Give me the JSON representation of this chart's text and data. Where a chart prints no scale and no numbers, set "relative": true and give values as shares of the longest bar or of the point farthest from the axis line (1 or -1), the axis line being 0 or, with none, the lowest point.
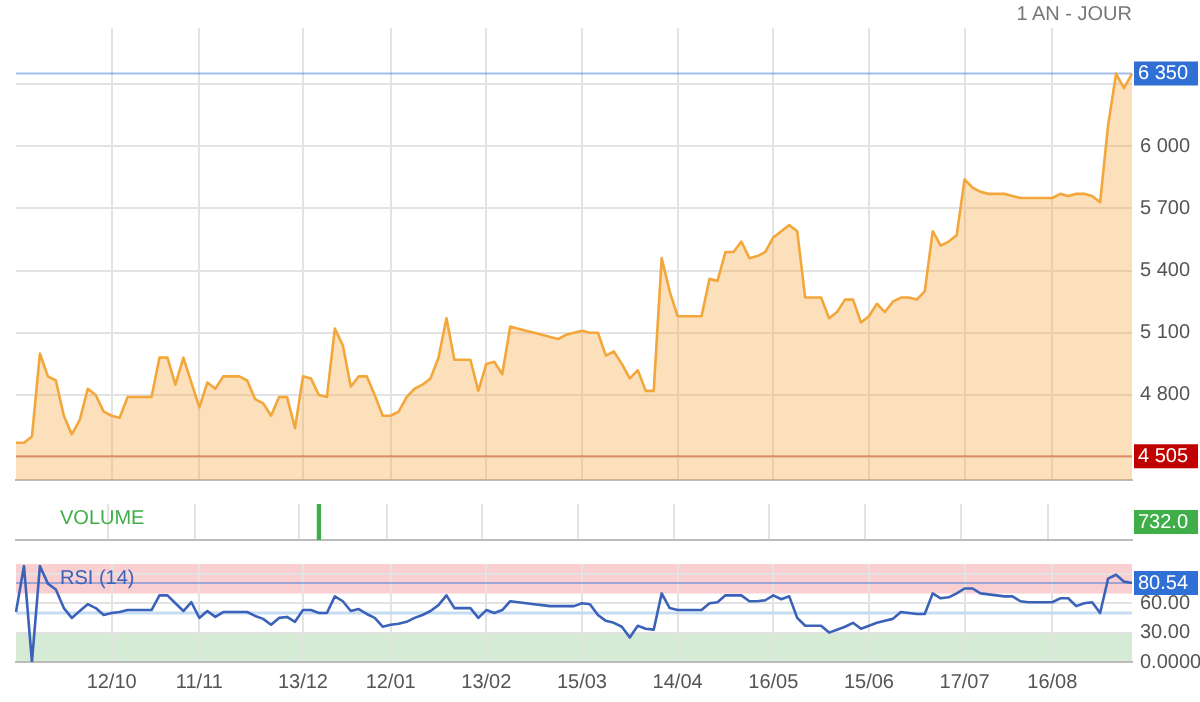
{
  "chart_data": [
    {
      "type": "area",
      "subtitle": "1 AN - JOUR",
      "marker": "none",
      "grid": true,
      "tick_labels": "y",
      "categories": [
        null,
        null,
        null,
        null,
        null,
        null,
        null,
        null,
        null,
        null,
        null,
        null,
        null,
        null,
        null,
        null,
        null,
        null,
        null,
        null,
        null,
        null,
        null,
        null,
        null,
        null,
        null,
        null,
        null,
        null,
        null,
        null,
        null,
        null,
        null,
        null,
        null,
        null,
        null,
        null,
        null,
        null,
        null,
        null,
        null,
        null,
        null,
        null,
        null,
        null,
        null,
        null,
        null,
        null,
        null,
        null,
        null,
        null,
        null,
        null,
        null,
        null,
        null,
        null,
        null,
        null,
        null,
        null,
        null,
        null,
        null,
        null,
        null,
        null,
        null,
        null,
        null,
        null,
        null,
        null,
        null,
        null,
        null,
        null,
        null,
        null,
        null,
        null,
        null,
        null,
        null,
        null,
        null,
        null,
        null,
        null,
        null,
        null,
        null,
        null,
        null,
        null,
        null,
        null,
        null,
        null,
        null,
        null,
        null,
        null,
        null,
        null,
        null,
        null,
        null,
        null,
        null,
        null,
        null,
        null,
        null,
        null,
        null,
        null,
        null,
        null,
        null,
        null,
        null,
        null,
        null,
        null,
        null,
        null,
        null,
        null,
        null,
        null,
        null,
        null,
        null
      ],
      "series": [
        {
          "color": "#f3a73b",
          "values": [
            4570,
            4570,
            4600,
            5000,
            4890,
            4870,
            4700,
            4610,
            4680,
            4830,
            4800,
            4720,
            4700,
            4690,
            4790,
            4790,
            4790,
            4790,
            4980,
            4980,
            4850,
            4980,
            4860,
            4740,
            4860,
            4830,
            4890,
            4890,
            4890,
            4870,
            4780,
            4760,
            4700,
            4790,
            4790,
            4640,
            4890,
            4880,
            4800,
            4790,
            5120,
            5040,
            4840,
            4890,
            4890,
            4800,
            4700,
            4700,
            4720,
            4790,
            4830,
            4850,
            4880,
            4980,
            5170,
            4970,
            4970,
            4970,
            4820,
            4950,
            4960,
            4900,
            5130,
            5120,
            5110,
            5100,
            5090,
            5080,
            5070,
            5090,
            5100,
            5110,
            5100,
            5100,
            4990,
            5010,
            4950,
            4880,
            4920,
            4820,
            4820,
            5460,
            5300,
            5180,
            5180,
            5180,
            5180,
            5360,
            5350,
            5490,
            5490,
            5540,
            5460,
            5470,
            5490,
            5560,
            5590,
            5620,
            5590,
            5270,
            5270,
            5270,
            5170,
            5200,
            5260,
            5260,
            5150,
            5180,
            5240,
            5200,
            5250,
            5270,
            5270,
            5260,
            5300,
            5590,
            5520,
            5540,
            5570,
            5840,
            5800,
            5780,
            5770,
            5770,
            5770,
            5760,
            5750,
            5750,
            5750,
            5750,
            5750,
            5770,
            5760,
            5770,
            5770,
            5760,
            5730,
            6100,
            6350,
            6280,
            6350
          ]
        }
      ],
      "ylim": [
        4390,
        6570
      ],
      "yticks": [
        {
          "value": 4500,
          "label": null
        },
        {
          "value": 4800,
          "label": "4 800"
        },
        {
          "value": 5100,
          "label": "5 100"
        },
        {
          "value": 5400,
          "label": "5 400"
        },
        {
          "value": 5700,
          "label": "5 700"
        },
        {
          "value": 6000,
          "label": "6 000"
        },
        {
          "value": 6300,
          "label": null
        }
      ],
      "ref_lines": [
        {
          "axis": "y",
          "value": 6350,
          "label": "6 350",
          "color": "#2f6fd6"
        },
        {
          "axis": "y",
          "value": 4505,
          "label": "4 505",
          "color": "#c00000"
        }
      ]
    },
    {
      "type": "bar",
      "title": "VOLUME",
      "relative": true,
      "grid": "x",
      "tick_labels": false,
      "categories": [
        null,
        null,
        null,
        null,
        null,
        null,
        null,
        null,
        null,
        null,
        null,
        null,
        null,
        null,
        null,
        null,
        null,
        null,
        null,
        null,
        null,
        null,
        null,
        null,
        null,
        null,
        null,
        null,
        null,
        null,
        null,
        null,
        null,
        null,
        null,
        null,
        null,
        null,
        null,
        null,
        null,
        null,
        null,
        null,
        null,
        null,
        null,
        null,
        null,
        null,
        null,
        null,
        null,
        null,
        null,
        null,
        null,
        null,
        null,
        null,
        null,
        null,
        null,
        null,
        null,
        null,
        null,
        null,
        null,
        null,
        null,
        null,
        null,
        null,
        null,
        null,
        null,
        null,
        null,
        null,
        null,
        null,
        null,
        null,
        null,
        null,
        null,
        null,
        null,
        null,
        null,
        null,
        null,
        null,
        null,
        null,
        null,
        null,
        null,
        null,
        null,
        null,
        null,
        null,
        null,
        null,
        null,
        null,
        null,
        null,
        null,
        null,
        null,
        null,
        null,
        null,
        null,
        null,
        null,
        null,
        null,
        null,
        null,
        null,
        null,
        null,
        null,
        null,
        null,
        null,
        null,
        null,
        null,
        null,
        null,
        null,
        null,
        null,
        null,
        null,
        null
      ],
      "series": [
        {
          "color": "#3fae49",
          "values": [
            null,
            null,
            null,
            null,
            null,
            null,
            null,
            null,
            null,
            null,
            null,
            null,
            null,
            null,
            null,
            null,
            null,
            null,
            null,
            null,
            null,
            null,
            null,
            null,
            null,
            null,
            null,
            null,
            null,
            null,
            null,
            null,
            null,
            null,
            null,
            null,
            null,
            null,
            1,
            null,
            null,
            null,
            null,
            null,
            null,
            null,
            null,
            null,
            null,
            null,
            null,
            null,
            null,
            null,
            null,
            null,
            null,
            null,
            null,
            null,
            null,
            null,
            null,
            null,
            null,
            null,
            null,
            null,
            null,
            null,
            null,
            null,
            null,
            null,
            null,
            null,
            null,
            null,
            null,
            null,
            null,
            null,
            null,
            null,
            null,
            null,
            null,
            null,
            null,
            null,
            null,
            null,
            null,
            null,
            null,
            null,
            null,
            null,
            null,
            null,
            null,
            null,
            null,
            null,
            null,
            null,
            null,
            null,
            null,
            null,
            null,
            null,
            null,
            null,
            null,
            null,
            null,
            null,
            null,
            null,
            null,
            null,
            null,
            null,
            null,
            null,
            null,
            null,
            null,
            null,
            null,
            null,
            null,
            null,
            null,
            null,
            null,
            null,
            null,
            null,
            null
          ]
        }
      ],
      "annotations": [
        "732.0"
      ]
    },
    {
      "type": "line",
      "title": "RSI (14)",
      "marker": "none",
      "grid": true,
      "categories": [
        null,
        null,
        null,
        null,
        null,
        null,
        null,
        null,
        null,
        null,
        null,
        null,
        "12/10",
        null,
        null,
        null,
        null,
        null,
        null,
        null,
        null,
        null,
        null,
        "11/11",
        null,
        null,
        null,
        null,
        null,
        null,
        null,
        null,
        null,
        null,
        null,
        null,
        "13/12",
        null,
        null,
        null,
        null,
        null,
        null,
        null,
        null,
        null,
        null,
        "12/01",
        null,
        null,
        null,
        null,
        null,
        null,
        null,
        null,
        null,
        null,
        null,
        "13/02",
        null,
        null,
        null,
        null,
        null,
        null,
        null,
        null,
        null,
        null,
        null,
        "15/03",
        null,
        null,
        null,
        null,
        null,
        null,
        null,
        null,
        null,
        null,
        null,
        "14/04",
        null,
        null,
        null,
        null,
        null,
        null,
        null,
        null,
        null,
        null,
        null,
        "16/05",
        null,
        null,
        null,
        null,
        null,
        null,
        null,
        null,
        null,
        null,
        null,
        "15/06",
        null,
        null,
        null,
        null,
        null,
        null,
        null,
        null,
        null,
        null,
        null,
        "17/07",
        null,
        null,
        null,
        null,
        null,
        null,
        null,
        null,
        null,
        null,
        "16/08",
        null,
        null,
        null,
        null,
        null,
        null,
        null,
        null,
        null,
        null
      ],
      "series": [
        {
          "color": "#3a62b8",
          "values": [
            51,
            98,
            0,
            98,
            80,
            74,
            55,
            45,
            52,
            59,
            55,
            48,
            50,
            51,
            53,
            53,
            53,
            53,
            68,
            68,
            60,
            52,
            61,
            45,
            52,
            46,
            51,
            51,
            51,
            51,
            47,
            44,
            38,
            45,
            46,
            41,
            53,
            53,
            50,
            50,
            67,
            62,
            52,
            54,
            49,
            45,
            36,
            38,
            39,
            41,
            45,
            48,
            52,
            58,
            68,
            55,
            55,
            55,
            45,
            53,
            50,
            53,
            62,
            61,
            60,
            59,
            58,
            57,
            57,
            57,
            57,
            60,
            59,
            48,
            42,
            40,
            36,
            25,
            37,
            34,
            33,
            70,
            55,
            53,
            53,
            53,
            53,
            60,
            61,
            68,
            68,
            68,
            62,
            62,
            63,
            68,
            64,
            67,
            45,
            37,
            37,
            37,
            30,
            33,
            36,
            40,
            34,
            37,
            40,
            42,
            44,
            51,
            50,
            49,
            49,
            70,
            65,
            66,
            70,
            75,
            75,
            70,
            69,
            68,
            67,
            67,
            62,
            61,
            61,
            61,
            61,
            65,
            65,
            57,
            60,
            61,
            50,
            85,
            89,
            82,
            80.54
          ]
        }
      ],
      "ylim": [
        0,
        100
      ],
      "yticks": [
        {
          "value": 0,
          "label": "0.0000"
        },
        {
          "value": 30,
          "label": "30.00"
        },
        {
          "value": 60,
          "label": "60.00"
        },
        {
          "value": 90,
          "label": null
        }
      ],
      "bands": [
        {
          "axis": "y",
          "from": 70,
          "to": 100,
          "color": "#f9cfd2"
        },
        {
          "axis": "y",
          "from": 0,
          "to": 30,
          "color": "#d6ebd6"
        }
      ],
      "ref_lines": [
        {
          "axis": "y",
          "value": 50,
          "color": "#c6dcf2"
        },
        {
          "axis": "y",
          "value": 80.54,
          "label": "80.54",
          "color": "#2f6fd6"
        }
      ]
    }
  ]
}
